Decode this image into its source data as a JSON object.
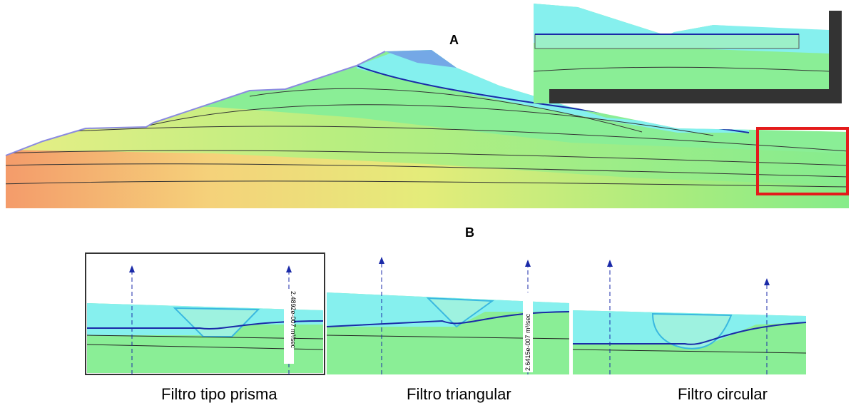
{
  "panel_a": {
    "label": "A"
  },
  "panel_b": {
    "label": "B",
    "filters": [
      {
        "caption": "Filtro tipo prisma",
        "flux_label": "2.4892e-007 m³/sec"
      },
      {
        "caption": "Filtro triangular",
        "flux_label": "2.6415e-007 m³/sec"
      },
      {
        "caption": "Filtro circular"
      }
    ]
  }
}
